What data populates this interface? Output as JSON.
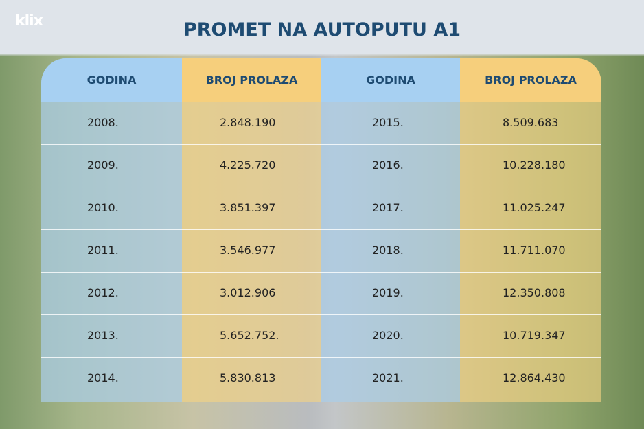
{
  "header": {
    "logo": "klix",
    "title": "PROMET NA AUTOPUTU A1"
  },
  "table": {
    "headers": [
      "GODINA",
      "BROJ PROLAZA",
      "GODINA",
      "BROJ PROLAZA"
    ],
    "rows": [
      [
        "2008.",
        "2.848.190",
        "2015.",
        "8.509.683"
      ],
      [
        "2009.",
        "4.225.720",
        "2016.",
        "10.228.180"
      ],
      [
        "2010.",
        "3.851.397",
        "2017.",
        "11.025.247"
      ],
      [
        "2011.",
        "3.546.977",
        "2018.",
        "11.711.070"
      ],
      [
        "2012.",
        "3.012.906",
        "2019.",
        "12.350.808"
      ],
      [
        "2013.",
        "5.652.752.",
        "2020.",
        "10.719.347"
      ],
      [
        "2014.",
        "5.830.813",
        "2021.",
        "12.864.430"
      ]
    ]
  }
}
